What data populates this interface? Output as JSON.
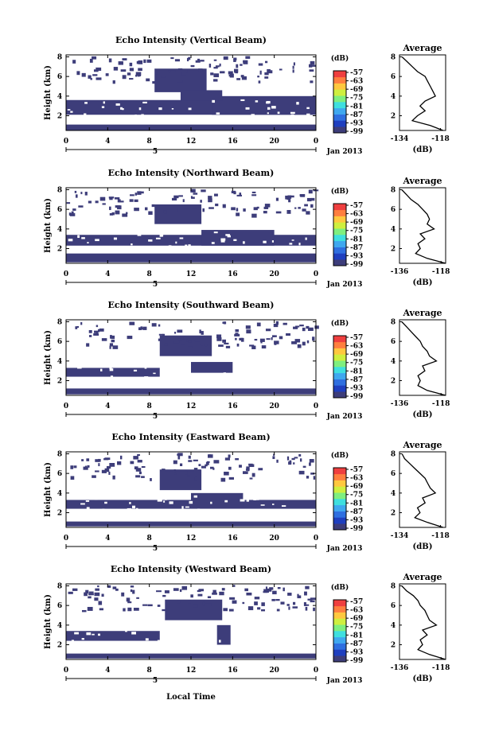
{
  "figure": {
    "shared_xlabel": "Local Time",
    "date_label": "Jan 2013",
    "day_label": "5",
    "colorbar_unit": "(dB)",
    "avg_unit": "(dB)",
    "avg_title": "Average",
    "heatmap_ylabel": "Height (km)"
  },
  "colors": {
    "echo": "#3d3d7a",
    "colorbar": [
      "#3d3d7a",
      "#1f3fbf",
      "#2f6fe0",
      "#3fa8ef",
      "#3fdfdf",
      "#7fef7f",
      "#cfef3f",
      "#ffc83f",
      "#ff7f3f",
      "#ef3f3f"
    ]
  },
  "chart_data": [
    {
      "type": "heatmap",
      "title": "Echo Intensity (Vertical Beam)",
      "ylabel": "Height (km)",
      "xlabel": "",
      "x_ticks": [
        "0",
        "4",
        "8",
        "12",
        "16",
        "20",
        "0"
      ],
      "y_ticks": [
        "2",
        "4",
        "6",
        "8"
      ],
      "xlim": [
        0,
        24
      ],
      "ylim": [
        0.5,
        8.2
      ],
      "colorbar": {
        "label": "(dB)",
        "ticks": [
          "-57",
          "-63",
          "-69",
          "-75",
          "-81",
          "-87",
          "-93",
          "-99"
        ]
      },
      "echo_regions": [
        {
          "t": [
            0,
            24
          ],
          "h": [
            2.1,
            3.6
          ]
        },
        {
          "t": [
            14,
            24
          ],
          "h": [
            2.1,
            4.0
          ]
        },
        {
          "t": [
            8.5,
            13.5
          ],
          "h": [
            4.4,
            6.8
          ]
        },
        {
          "t": [
            11,
            15
          ],
          "h": [
            3.5,
            4.6
          ]
        },
        {
          "t": [
            0,
            24
          ],
          "h": [
            0.5,
            1.1
          ]
        }
      ],
      "average_profile": {
        "title": "Average",
        "xlabel": "(dB)",
        "x_ticks": [
          "-134",
          "-118"
        ],
        "y_ticks": [
          "2",
          "4",
          "6",
          "8"
        ],
        "xlim": [
          -134,
          -116
        ],
        "height_km": [
          0.5,
          1.0,
          1.5,
          2.0,
          2.5,
          3.0,
          3.5,
          4.0,
          4.5,
          5.0,
          5.5,
          6.0,
          6.5,
          7.0,
          7.5,
          8.0
        ],
        "echo_db": [
          -117,
          -122,
          -129,
          -127,
          -124,
          -126,
          -124,
          -120,
          -121,
          -122,
          -123,
          -124,
          -127,
          -129,
          -131,
          -133
        ]
      }
    },
    {
      "type": "heatmap",
      "title": "Echo Intensity (Northward Beam)",
      "ylabel": "Height (km)",
      "xlabel": "",
      "x_ticks": [
        "0",
        "4",
        "8",
        "12",
        "16",
        "20",
        "0"
      ],
      "y_ticks": [
        "2",
        "4",
        "6",
        "8"
      ],
      "xlim": [
        0,
        24
      ],
      "ylim": [
        0.5,
        8.2
      ],
      "colorbar": {
        "label": "(dB)",
        "ticks": [
          "-57",
          "-63",
          "-69",
          "-75",
          "-81",
          "-87",
          "-93",
          "-99"
        ]
      },
      "echo_regions": [
        {
          "t": [
            0,
            24
          ],
          "h": [
            2.3,
            3.4
          ]
        },
        {
          "t": [
            13,
            20
          ],
          "h": [
            2.3,
            3.9
          ]
        },
        {
          "t": [
            8.5,
            13
          ],
          "h": [
            4.5,
            6.5
          ]
        },
        {
          "t": [
            0,
            24
          ],
          "h": [
            0.6,
            1.5
          ]
        }
      ],
      "average_profile": {
        "title": "Average",
        "xlabel": "(dB)",
        "x_ticks": [
          "-136",
          "-118"
        ],
        "y_ticks": [
          "2",
          "4",
          "6",
          "8"
        ],
        "xlim": [
          -136,
          -116
        ],
        "height_km": [
          0.5,
          1.0,
          1.5,
          2.0,
          2.5,
          3.0,
          3.5,
          4.0,
          4.5,
          5.0,
          5.5,
          6.0,
          6.5,
          7.0,
          7.5,
          8.0
        ],
        "echo_db": [
          -116,
          -124,
          -129,
          -127,
          -128,
          -125,
          -127,
          -121,
          -124,
          -123,
          -124,
          -126,
          -128,
          -131,
          -133,
          -135
        ]
      }
    },
    {
      "type": "heatmap",
      "title": "Echo Intensity (Southward Beam)",
      "ylabel": "Height (km)",
      "xlabel": "",
      "x_ticks": [
        "0",
        "4",
        "8",
        "12",
        "16",
        "20",
        "0"
      ],
      "y_ticks": [
        "2",
        "4",
        "6",
        "8"
      ],
      "xlim": [
        0,
        24
      ],
      "ylim": [
        0.5,
        8.2
      ],
      "colorbar": {
        "label": "(dB)",
        "ticks": [
          "-57",
          "-63",
          "-69",
          "-75",
          "-81",
          "-87",
          "-93",
          "-99"
        ]
      },
      "echo_regions": [
        {
          "t": [
            0,
            9
          ],
          "h": [
            2.4,
            3.3
          ]
        },
        {
          "t": [
            9,
            14
          ],
          "h": [
            4.5,
            6.6
          ]
        },
        {
          "t": [
            12,
            16
          ],
          "h": [
            2.8,
            3.9
          ]
        },
        {
          "t": [
            0,
            24
          ],
          "h": [
            0.6,
            1.2
          ]
        }
      ],
      "average_profile": {
        "title": "Average",
        "xlabel": "(dB)",
        "x_ticks": [
          "-136",
          "-118"
        ],
        "y_ticks": [
          "2",
          "4",
          "6",
          "8"
        ],
        "xlim": [
          -136,
          -116
        ],
        "height_km": [
          0.5,
          1.0,
          1.5,
          2.0,
          2.5,
          3.0,
          3.5,
          4.0,
          4.5,
          5.0,
          5.5,
          6.0,
          6.5,
          7.0,
          7.5,
          8.0
        ],
        "echo_db": [
          -116,
          -124,
          -128,
          -127,
          -128,
          -125,
          -126,
          -120,
          -123,
          -124,
          -126,
          -127,
          -129,
          -131,
          -133,
          -135
        ]
      }
    },
    {
      "type": "heatmap",
      "title": "Echo Intensity (Eastward Beam)",
      "ylabel": "Height (km)",
      "xlabel": "",
      "x_ticks": [
        "0",
        "4",
        "8",
        "12",
        "16",
        "20",
        "0"
      ],
      "y_ticks": [
        "2",
        "4",
        "6",
        "8"
      ],
      "xlim": [
        0,
        24
      ],
      "ylim": [
        0.5,
        8.2
      ],
      "colorbar": {
        "label": "(dB)",
        "ticks": [
          "-57",
          "-63",
          "-69",
          "-75",
          "-81",
          "-87",
          "-93",
          "-99"
        ]
      },
      "echo_regions": [
        {
          "t": [
            0,
            24
          ],
          "h": [
            2.4,
            3.3
          ]
        },
        {
          "t": [
            9,
            13
          ],
          "h": [
            4.3,
            6.4
          ]
        },
        {
          "t": [
            12,
            17
          ],
          "h": [
            2.6,
            4.0
          ]
        },
        {
          "t": [
            0,
            24
          ],
          "h": [
            0.6,
            1.1
          ]
        }
      ],
      "average_profile": {
        "title": "Average",
        "xlabel": "(dB)",
        "x_ticks": [
          "-134",
          "-118"
        ],
        "y_ticks": [
          "2",
          "4",
          "6",
          "8"
        ],
        "xlim": [
          -134,
          -116
        ],
        "height_km": [
          0.5,
          1.0,
          1.5,
          2.0,
          2.5,
          3.0,
          3.5,
          4.0,
          4.5,
          5.0,
          5.5,
          6.0,
          6.5,
          7.0,
          7.5,
          8.0
        ],
        "echo_db": [
          -117,
          -123,
          -128,
          -126,
          -127,
          -124,
          -125,
          -120,
          -122,
          -123,
          -124,
          -126,
          -128,
          -130,
          -132,
          -133
        ]
      }
    },
    {
      "type": "heatmap",
      "title": "Echo Intensity (Westward Beam)",
      "ylabel": "Height (km)",
      "xlabel": "Local Time",
      "x_ticks": [
        "0",
        "4",
        "8",
        "12",
        "16",
        "20",
        "0"
      ],
      "y_ticks": [
        "2",
        "4",
        "6",
        "8"
      ],
      "xlim": [
        0,
        24
      ],
      "ylim": [
        0.5,
        8.2
      ],
      "colorbar": {
        "label": "(dB)",
        "ticks": [
          "-57",
          "-63",
          "-69",
          "-75",
          "-81",
          "-87",
          "-93",
          "-99"
        ]
      },
      "echo_regions": [
        {
          "t": [
            0,
            9
          ],
          "h": [
            2.4,
            3.4
          ]
        },
        {
          "t": [
            9.5,
            15
          ],
          "h": [
            4.5,
            6.6
          ]
        },
        {
          "t": [
            14.5,
            15.8
          ],
          "h": [
            2.0,
            4.0
          ]
        },
        {
          "t": [
            0,
            24
          ],
          "h": [
            0.6,
            1.1
          ]
        }
      ],
      "average_profile": {
        "title": "Average",
        "xlabel": "(dB)",
        "x_ticks": [
          "-136",
          "-118"
        ],
        "y_ticks": [
          "2",
          "4",
          "6",
          "8"
        ],
        "xlim": [
          -136,
          -116
        ],
        "height_km": [
          0.5,
          1.0,
          1.5,
          2.0,
          2.5,
          3.0,
          3.5,
          4.0,
          4.5,
          5.0,
          5.5,
          6.0,
          6.5,
          7.0,
          7.5,
          8.0
        ],
        "echo_db": [
          -116,
          -123,
          -128,
          -126,
          -127,
          -124,
          -126,
          -120,
          -123,
          -124,
          -125,
          -127,
          -128,
          -130,
          -133,
          -135
        ]
      }
    }
  ]
}
